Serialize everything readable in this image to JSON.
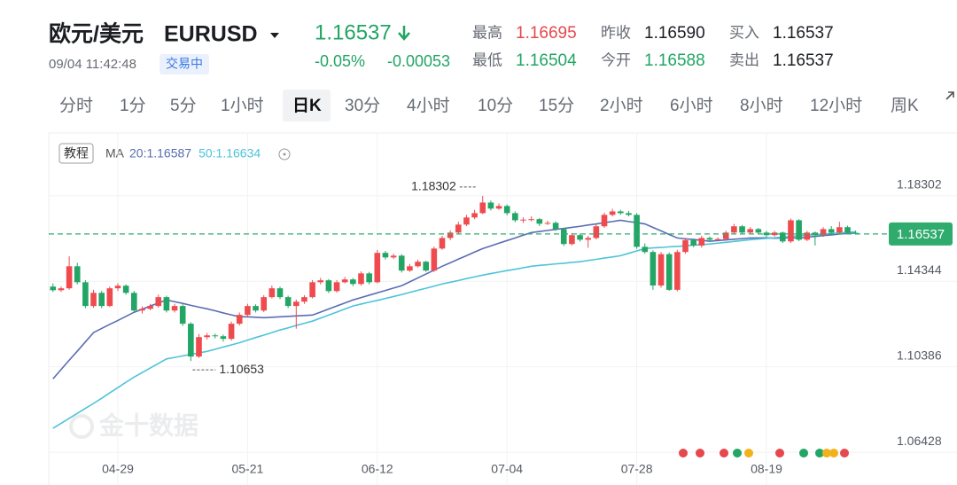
{
  "header": {
    "name": "欧元/美元",
    "symbol": "EURUSD",
    "price": "1.16537",
    "change_pct": "-0.05%",
    "change": "-0.00053",
    "time": "09/04 11:42:48",
    "status": "交易中",
    "stats": [
      {
        "label": "最高",
        "value": "1.16695"
      },
      {
        "label": "最低",
        "value": "1.16504"
      },
      {
        "label": "昨收",
        "value": "1.16590"
      },
      {
        "label": "今开",
        "value": "1.16588"
      },
      {
        "label": "买入",
        "value": "1.16537"
      },
      {
        "label": "卖出",
        "value": "1.16537"
      }
    ]
  },
  "tabs": [
    "分时",
    "1分",
    "5分",
    "1小时",
    "日K",
    "30分",
    "4小时",
    "10分",
    "15分",
    "2小时",
    "6小时",
    "8小时",
    "12小时",
    "周K"
  ],
  "active_tab": 4,
  "tutorial": "教程",
  "watermark": "金十数据",
  "chart_data": {
    "type": "candlestick",
    "legend_title": "MA",
    "grid": true,
    "up_color": "#ef4b4f",
    "down_color": "#22a565",
    "last_price_color": "#2fab6e",
    "ylim": [
      1.0635,
      1.2121
    ],
    "yticks": [
      1.06428,
      1.10386,
      1.14344,
      1.18302
    ],
    "categories": [
      null,
      null,
      null,
      null,
      null,
      null,
      null,
      null,
      "04-29",
      null,
      null,
      null,
      null,
      null,
      null,
      null,
      null,
      null,
      null,
      null,
      null,
      null,
      null,
      null,
      "05-21",
      null,
      null,
      null,
      null,
      null,
      null,
      null,
      null,
      null,
      null,
      null,
      null,
      null,
      null,
      null,
      "06-12",
      null,
      null,
      null,
      null,
      null,
      null,
      null,
      null,
      null,
      null,
      null,
      null,
      null,
      null,
      null,
      "07-04",
      null,
      null,
      null,
      null,
      null,
      null,
      null,
      null,
      null,
      null,
      null,
      null,
      null,
      null,
      null,
      "07-28",
      null,
      null,
      null,
      null,
      null,
      null,
      null,
      null,
      null,
      null,
      null,
      null,
      null,
      null,
      null,
      "08-19",
      null,
      null,
      null,
      null,
      null,
      null,
      null,
      null,
      null,
      null,
      null
    ],
    "candles": [
      [
        1.141,
        1.1425,
        1.1385,
        1.1393
      ],
      [
        1.1393,
        1.141,
        1.1385,
        1.1402
      ],
      [
        1.1402,
        1.155,
        1.1395,
        1.1504
      ],
      [
        1.1504,
        1.152,
        1.142,
        1.143
      ],
      [
        1.143,
        1.144,
        1.131,
        1.132
      ],
      [
        1.132,
        1.1395,
        1.1312,
        1.1381
      ],
      [
        1.1381,
        1.139,
        1.131,
        1.132
      ],
      [
        1.132,
        1.141,
        1.1315,
        1.1402
      ],
      [
        1.1402,
        1.1425,
        1.139,
        1.1414
      ],
      [
        1.1414,
        1.142,
        1.1372,
        1.1381
      ],
      [
        1.1381,
        1.139,
        1.129,
        1.1299
      ],
      [
        1.1299,
        1.1318,
        1.1285,
        1.1307
      ],
      [
        1.1307,
        1.133,
        1.13,
        1.132
      ],
      [
        1.132,
        1.1372,
        1.1312,
        1.1361
      ],
      [
        1.1361,
        1.1368,
        1.129,
        1.1299
      ],
      [
        1.1299,
        1.133,
        1.129,
        1.132
      ],
      [
        1.132,
        1.1328,
        1.1228,
        1.1238
      ],
      [
        1.1238,
        1.1245,
        1.10653,
        1.1086
      ],
      [
        1.1086,
        1.119,
        1.108,
        1.1176
      ],
      [
        1.1176,
        1.1195,
        1.1165,
        1.1184
      ],
      [
        1.1184,
        1.1192,
        1.117,
        1.118
      ],
      [
        1.118,
        1.1188,
        1.1155,
        1.1168
      ],
      [
        1.1168,
        1.1248,
        1.116,
        1.1238
      ],
      [
        1.1238,
        1.129,
        1.123,
        1.1279
      ],
      [
        1.1279,
        1.133,
        1.127,
        1.132
      ],
      [
        1.132,
        1.1328,
        1.129,
        1.1299
      ],
      [
        1.1299,
        1.137,
        1.1292,
        1.1361
      ],
      [
        1.1361,
        1.1415,
        1.1355,
        1.1402
      ],
      [
        1.1402,
        1.141,
        1.1352,
        1.1361
      ],
      [
        1.1361,
        1.1368,
        1.131,
        1.132
      ],
      [
        1.132,
        1.135,
        1.1215,
        1.134
      ],
      [
        1.134,
        1.137,
        1.133,
        1.1361
      ],
      [
        1.1361,
        1.144,
        1.1355,
        1.143
      ],
      [
        1.143,
        1.145,
        1.142,
        1.1439
      ],
      [
        1.1439,
        1.1445,
        1.138,
        1.1389
      ],
      [
        1.1389,
        1.144,
        1.1382,
        1.143
      ],
      [
        1.143,
        1.1455,
        1.1425,
        1.1443
      ],
      [
        1.1443,
        1.145,
        1.1412,
        1.1422
      ],
      [
        1.1422,
        1.148,
        1.1415,
        1.1471
      ],
      [
        1.1471,
        1.1478,
        1.142,
        1.143
      ],
      [
        1.143,
        1.158,
        1.1425,
        1.1566
      ],
      [
        1.1566,
        1.1575,
        1.1535,
        1.1545
      ],
      [
        1.1545,
        1.1562,
        1.1538,
        1.1553
      ],
      [
        1.1553,
        1.156,
        1.1475,
        1.1484
      ],
      [
        1.1484,
        1.1515,
        1.1478,
        1.1504
      ],
      [
        1.1504,
        1.1535,
        1.1498,
        1.1525
      ],
      [
        1.1525,
        1.153,
        1.1478,
        1.1484
      ],
      [
        1.1484,
        1.1595,
        1.1478,
        1.1586
      ],
      [
        1.1586,
        1.1645,
        1.158,
        1.1635
      ],
      [
        1.1635,
        1.167,
        1.1625,
        1.166
      ],
      [
        1.166,
        1.171,
        1.1652,
        1.1697
      ],
      [
        1.1697,
        1.1742,
        1.169,
        1.173
      ],
      [
        1.173,
        1.1765,
        1.1722,
        1.175
      ],
      [
        1.175,
        1.18302,
        1.1745,
        1.1799
      ],
      [
        1.1799,
        1.1808,
        1.1762,
        1.1771
      ],
      [
        1.1771,
        1.1795,
        1.1765,
        1.1783
      ],
      [
        1.1783,
        1.179,
        1.174,
        1.175
      ],
      [
        1.175,
        1.1758,
        1.1708,
        1.1717
      ],
      [
        1.1717,
        1.173,
        1.1705,
        1.172
      ],
      [
        1.172,
        1.1735,
        1.1712,
        1.1722
      ],
      [
        1.1722,
        1.1728,
        1.169,
        1.1701
      ],
      [
        1.1701,
        1.1715,
        1.1695,
        1.1705
      ],
      [
        1.1705,
        1.1712,
        1.1668,
        1.1676
      ],
      [
        1.1676,
        1.1682,
        1.1598,
        1.1607
      ],
      [
        1.1607,
        1.1658,
        1.16,
        1.1648
      ],
      [
        1.1648,
        1.1655,
        1.1618,
        1.1627
      ],
      [
        1.1627,
        1.1645,
        1.159,
        1.1635
      ],
      [
        1.1635,
        1.1698,
        1.1628,
        1.1689
      ],
      [
        1.1689,
        1.1752,
        1.1682,
        1.1742
      ],
      [
        1.1742,
        1.177,
        1.1735,
        1.1758
      ],
      [
        1.1758,
        1.1765,
        1.1742,
        1.175
      ],
      [
        1.175,
        1.176,
        1.1735,
        1.1742
      ],
      [
        1.1742,
        1.175,
        1.1585,
        1.1594
      ],
      [
        1.1594,
        1.161,
        1.1562,
        1.157
      ],
      [
        1.157,
        1.1578,
        1.1395,
        1.1415
      ],
      [
        1.1415,
        1.157,
        1.1405,
        1.156
      ],
      [
        1.156,
        1.1568,
        1.139,
        1.1395
      ],
      [
        1.1395,
        1.158,
        1.1388,
        1.157
      ],
      [
        1.157,
        1.1635,
        1.1562,
        1.1625
      ],
      [
        1.1625,
        1.1632,
        1.1592,
        1.16
      ],
      [
        1.16,
        1.1645,
        1.159,
        1.1635
      ],
      [
        1.1635,
        1.1642,
        1.1618,
        1.1627
      ],
      [
        1.1627,
        1.1638,
        1.162,
        1.163
      ],
      [
        1.163,
        1.1668,
        1.1622,
        1.166
      ],
      [
        1.166,
        1.17,
        1.1652,
        1.1689
      ],
      [
        1.1689,
        1.1695,
        1.1652,
        1.166
      ],
      [
        1.166,
        1.1685,
        1.1652,
        1.1676
      ],
      [
        1.1676,
        1.1682,
        1.1652,
        1.166
      ],
      [
        1.166,
        1.1668,
        1.164,
        1.1648
      ],
      [
        1.1648,
        1.1668,
        1.1642,
        1.166
      ],
      [
        1.166,
        1.1665,
        1.1612,
        1.1619
      ],
      [
        1.1619,
        1.1725,
        1.1612,
        1.1717
      ],
      [
        1.1717,
        1.1722,
        1.162,
        1.1627
      ],
      [
        1.1627,
        1.1668,
        1.162,
        1.166
      ],
      [
        1.166,
        1.1665,
        1.16,
        1.1648
      ],
      [
        1.1648,
        1.1685,
        1.164,
        1.1676
      ],
      [
        1.1676,
        1.169,
        1.1652,
        1.166
      ],
      [
        1.166,
        1.171,
        1.1655,
        1.1685
      ],
      [
        1.1685,
        1.1692,
        1.1652,
        1.1659
      ],
      [
        1.16588,
        1.16695,
        1.16504,
        1.16537
      ]
    ],
    "series": [
      {
        "name": "20:1.16587",
        "color": "#5a6db3",
        "values": [
          1.0983,
          1.1026,
          1.1069,
          1.1111,
          1.1154,
          1.1197,
          1.1216,
          1.1235,
          1.1253,
          1.1272,
          1.1291,
          1.1305,
          1.132,
          1.1334,
          1.1348,
          1.134,
          1.1332,
          1.1323,
          1.1315,
          1.1307,
          1.1298,
          1.1288,
          1.1279,
          1.127,
          1.127,
          1.1268,
          1.1266,
          1.1268,
          1.127,
          1.1272,
          1.1274,
          1.1276,
          1.1278,
          1.1292,
          1.1306,
          1.132,
          1.1334,
          1.1348,
          1.1359,
          1.137,
          1.1381,
          1.1392,
          1.1403,
          1.1414,
          1.1432,
          1.145,
          1.1468,
          1.1486,
          1.1504,
          1.152,
          1.1537,
          1.1553,
          1.157,
          1.1586,
          1.1598,
          1.1611,
          1.1623,
          1.1635,
          1.1648,
          1.166,
          1.1665,
          1.167,
          1.1675,
          1.1679,
          1.1684,
          1.1689,
          1.1695,
          1.17,
          1.1706,
          1.1711,
          1.1717,
          1.1711,
          1.1706,
          1.17,
          1.1684,
          1.1668,
          1.1651,
          1.1635,
          1.1631,
          1.1628,
          1.1624,
          1.162,
          1.1623,
          1.1626,
          1.1629,
          1.1632,
          1.1635,
          1.1635,
          1.1636,
          1.1634,
          1.1635,
          1.1636,
          1.1635,
          1.1639,
          1.1642,
          1.1646,
          1.1649,
          1.1653,
          1.1656,
          1.16587
        ]
      },
      {
        "name": "50:1.16634",
        "color": "#4ec3d9",
        "values": [
          1.0754,
          1.0777,
          1.08,
          1.0823,
          1.0846,
          1.0869,
          1.0893,
          1.0918,
          1.0942,
          1.0967,
          1.0991,
          1.1012,
          1.1033,
          1.1054,
          1.1075,
          1.1082,
          1.1089,
          1.1096,
          1.1103,
          1.111,
          1.112,
          1.113,
          1.114,
          1.115,
          1.1162,
          1.1174,
          1.1185,
          1.1197,
          1.1209,
          1.1219,
          1.123,
          1.124,
          1.125,
          1.1264,
          1.1278,
          1.1292,
          1.1306,
          1.132,
          1.1329,
          1.1338,
          1.1346,
          1.1355,
          1.1364,
          1.1373,
          1.1383,
          1.1393,
          1.1402,
          1.1412,
          1.1422,
          1.143,
          1.1438,
          1.1447,
          1.1455,
          1.1463,
          1.147,
          1.1477,
          1.1484,
          1.149,
          1.1497,
          1.1504,
          1.1508,
          1.1511,
          1.1515,
          1.1518,
          1.1522,
          1.1525,
          1.1531,
          1.1536,
          1.1542,
          1.1547,
          1.1553,
          1.1564,
          1.1575,
          1.1586,
          1.1589,
          1.1591,
          1.1594,
          1.1596,
          1.1599,
          1.1602,
          1.1604,
          1.1607,
          1.1611,
          1.1615,
          1.1619,
          1.1623,
          1.1627,
          1.163,
          1.1633,
          1.1636,
          1.1639,
          1.1642,
          1.1645,
          1.1648,
          1.165,
          1.1653,
          1.1656,
          1.1658,
          1.1661,
          1.16634
        ]
      }
    ]
  }
}
